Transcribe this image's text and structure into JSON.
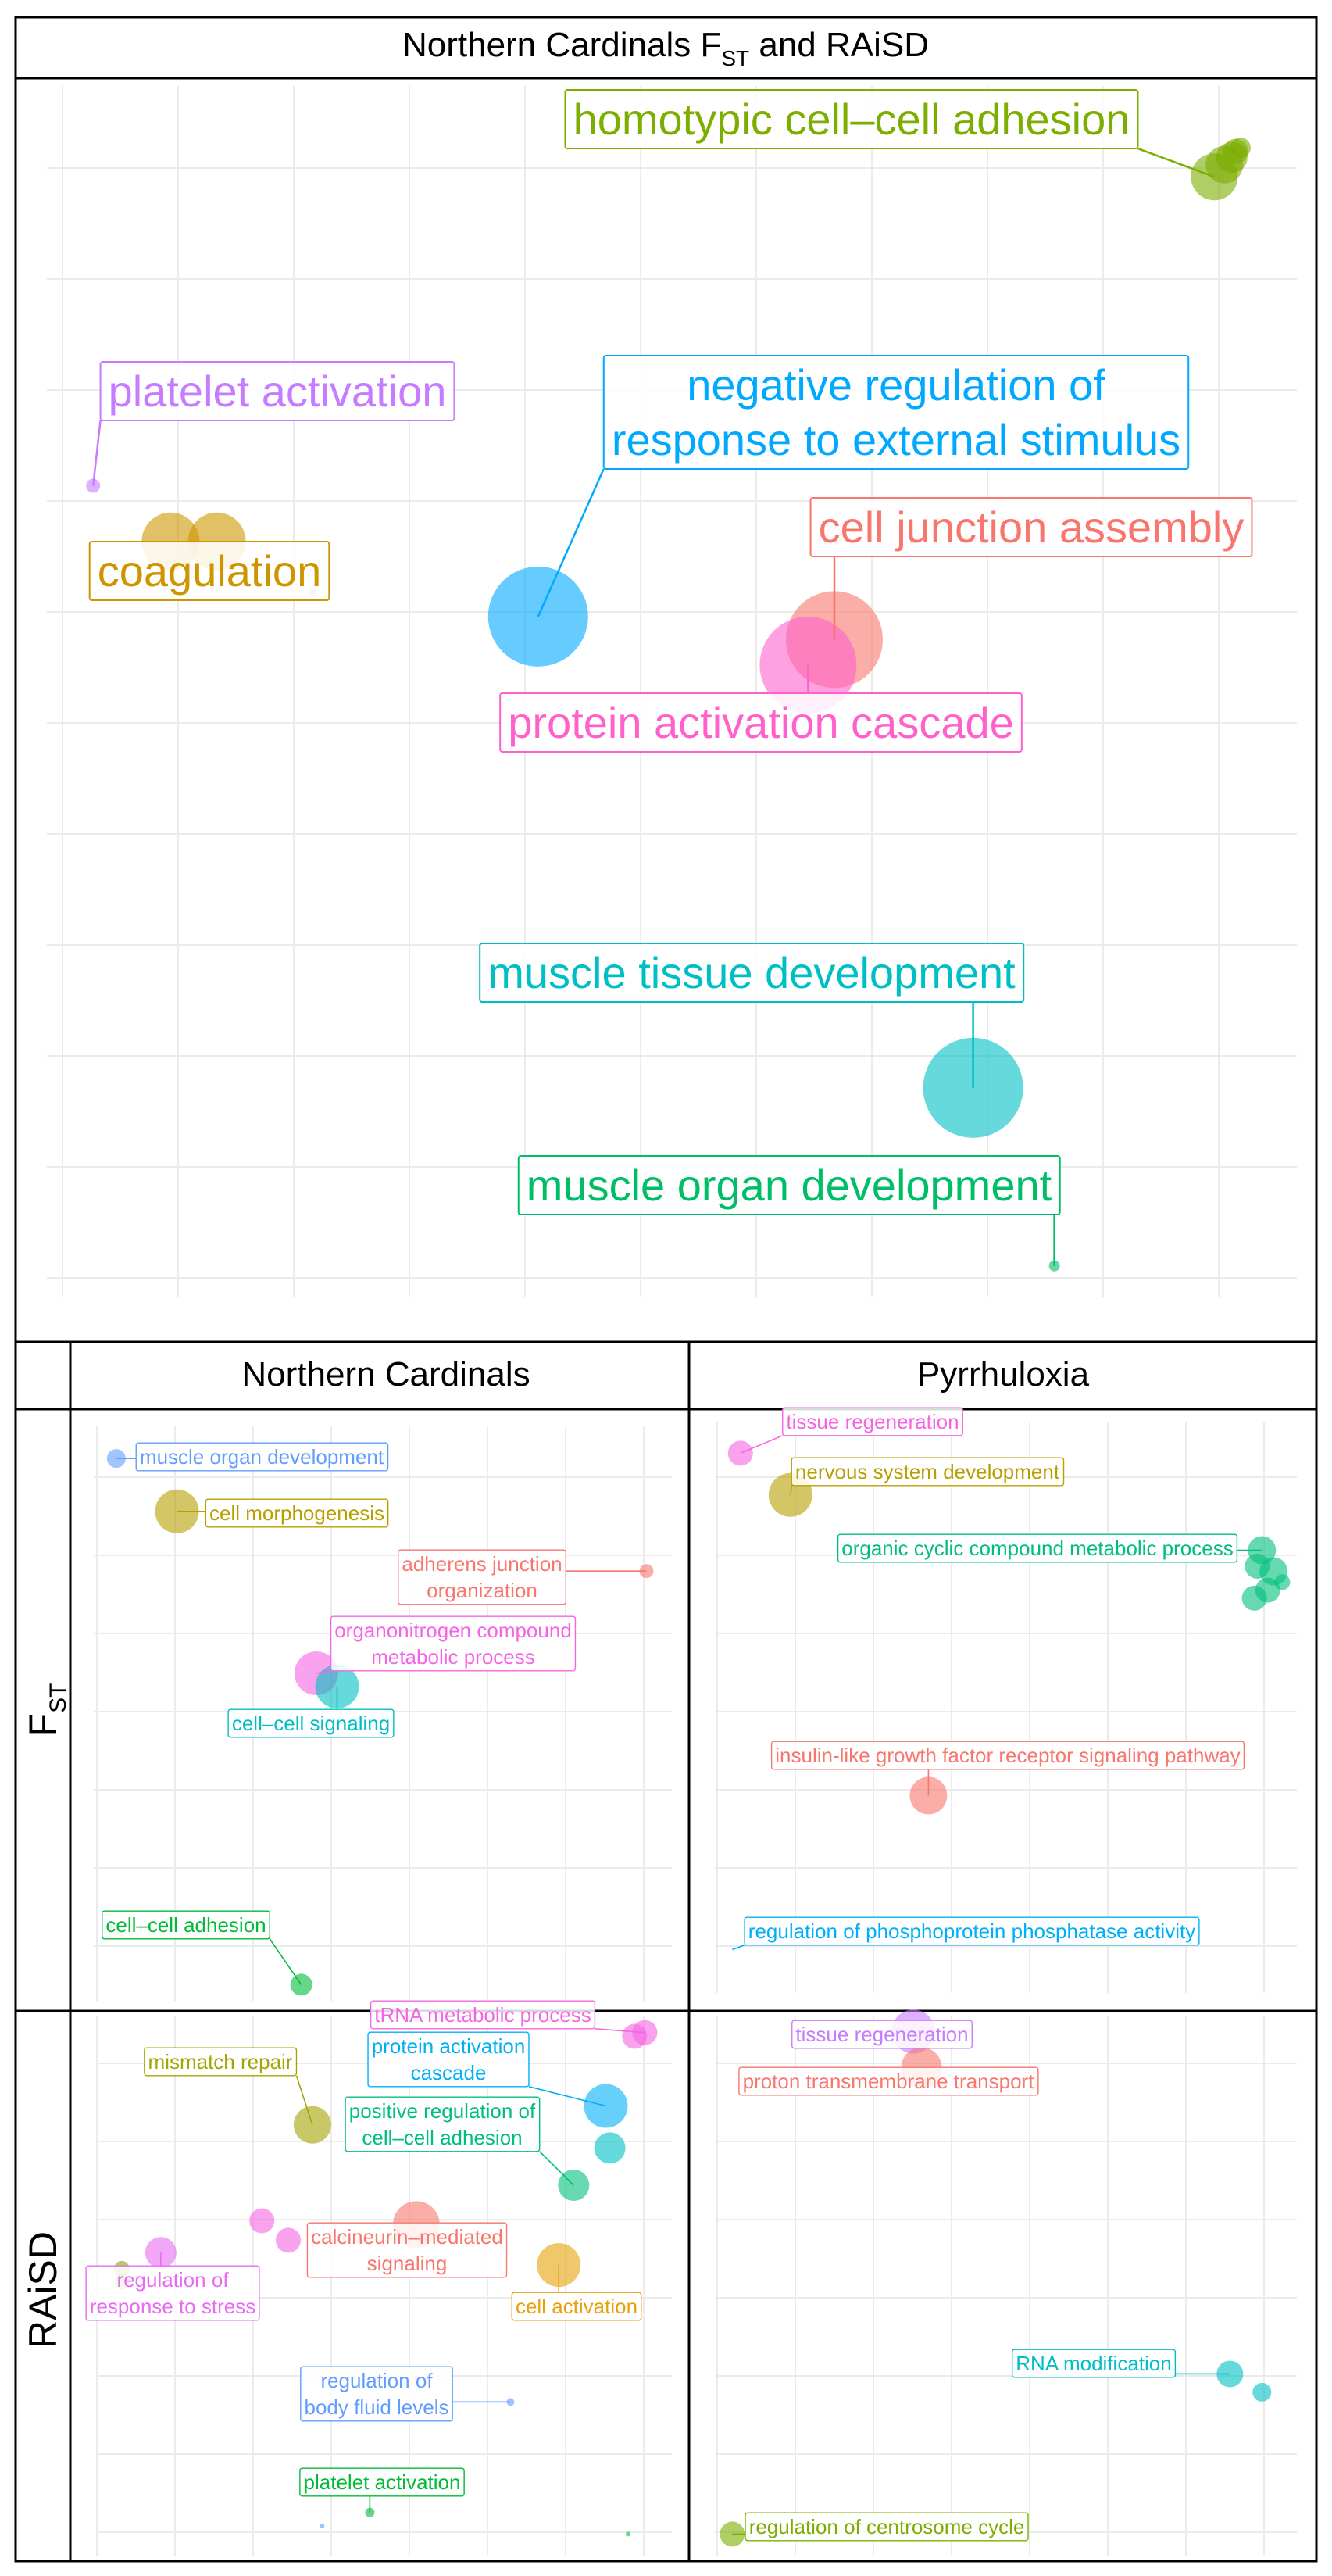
{
  "figure": {
    "top_title": "Northern Cardinals F",
    "top_title_sub": "ST",
    "top_title_suffix": " and RAiSD",
    "col_headers": [
      "Northern Cardinals",
      "Pyrrhuloxia"
    ],
    "row_headers": [
      {
        "main": "F",
        "sub": "ST"
      },
      {
        "main": "RAiSD",
        "sub": ""
      }
    ]
  },
  "colors": {
    "frame": "#000000",
    "grid": "#ebebeb",
    "background": "#ffffff"
  },
  "chart_data": [
    {
      "panel": "top",
      "type": "scatter",
      "points": [
        {
          "label": "homotypic cell–cell adhesion",
          "x": 0.934,
          "y": 0.925,
          "r": 30,
          "color": "#7cae00",
          "show": true
        },
        {
          "label": "",
          "x": 0.942,
          "y": 0.935,
          "r": 24,
          "color": "#7cae00",
          "show": false
        },
        {
          "label": "",
          "x": 0.948,
          "y": 0.941,
          "r": 20,
          "color": "#7cae00",
          "show": false
        },
        {
          "label": "",
          "x": 0.951,
          "y": 0.946,
          "r": 16,
          "color": "#7cae00",
          "show": false
        },
        {
          "label": "",
          "x": 0.955,
          "y": 0.949,
          "r": 13,
          "color": "#7cae00",
          "show": false
        },
        {
          "label": "platelet activation",
          "x": 0.037,
          "y": 0.67,
          "r": 9,
          "color": "#c77cff",
          "show": true
        },
        {
          "label": "coagulation",
          "x": 0.099,
          "y": 0.624,
          "r": 37,
          "color": "#cd9600",
          "show": true
        },
        {
          "label": "",
          "x": 0.136,
          "y": 0.624,
          "r": 37,
          "color": "#cd9600",
          "show": false
        },
        {
          "label": "",
          "x": 0.213,
          "y": 0.582,
          "r": 5,
          "color": "#c77cff",
          "show": false
        },
        {
          "label": "negative regulation of\nresponse to external stimulus",
          "x": 0.393,
          "y": 0.562,
          "r": 64,
          "color": "#00a9ff",
          "show": true
        },
        {
          "label": "cell junction assembly",
          "x": 0.63,
          "y": 0.543,
          "r": 62,
          "color": "#f8766d",
          "show": true
        },
        {
          "label": "protein activation cascade",
          "x": 0.609,
          "y": 0.522,
          "r": 62,
          "color": "#ff61cc",
          "show": true
        },
        {
          "label": "muscle tissue development",
          "x": 0.741,
          "y": 0.173,
          "r": 64,
          "color": "#00bfc4",
          "show": true
        },
        {
          "label": "muscle organ development",
          "x": 0.806,
          "y": 0.026,
          "r": 7,
          "color": "#00be67",
          "show": true
        }
      ]
    },
    {
      "panel": "Northern Cardinals F_ST",
      "type": "scatter",
      "points": [
        {
          "label": "muscle organ development",
          "x": 0.039,
          "y": 0.944,
          "r": 12,
          "color": "#619cff",
          "show": true
        },
        {
          "label": "cell morphogenesis",
          "x": 0.144,
          "y": 0.852,
          "r": 28,
          "color": "#b79f00",
          "show": true
        },
        {
          "label": "adherens junction\norganization",
          "x": 0.956,
          "y": 0.748,
          "r": 9,
          "color": "#f8766d",
          "show": true
        },
        {
          "label": "organonitrogen compound\nmetabolic process",
          "x": 0.385,
          "y": 0.57,
          "r": 28,
          "color": "#f564e3",
          "show": true
        },
        {
          "label": "cell–cell signaling",
          "x": 0.421,
          "y": 0.547,
          "r": 28,
          "color": "#00bfc4",
          "show": true
        },
        {
          "label": "cell–cell adhesion",
          "x": 0.359,
          "y": 0.028,
          "r": 14,
          "color": "#00ba38",
          "show": true
        }
      ]
    },
    {
      "panel": "Pyrrhuloxia F_ST",
      "type": "scatter",
      "points": [
        {
          "label": "tissue regeneration",
          "x": 0.044,
          "y": 0.946,
          "r": 16,
          "color": "#f564e3",
          "show": true
        },
        {
          "label": "nervous system development",
          "x": 0.13,
          "y": 0.873,
          "r": 28,
          "color": "#b79f00",
          "show": true
        },
        {
          "label": "organic cyclic compound metabolic process",
          "x": 0.94,
          "y": 0.776,
          "r": 18,
          "color": "#00bf7d",
          "show": true
        },
        {
          "label": "",
          "x": 0.96,
          "y": 0.739,
          "r": 18,
          "color": "#00bf7d",
          "show": false
        },
        {
          "label": "",
          "x": 0.932,
          "y": 0.748,
          "r": 16,
          "color": "#00bf7d",
          "show": false
        },
        {
          "label": "",
          "x": 0.95,
          "y": 0.706,
          "r": 16,
          "color": "#00bf7d",
          "show": false
        },
        {
          "label": "",
          "x": 0.975,
          "y": 0.72,
          "r": 10,
          "color": "#00bf7d",
          "show": false
        },
        {
          "label": "",
          "x": 0.927,
          "y": 0.692,
          "r": 16,
          "color": "#00bf7d",
          "show": false
        },
        {
          "label": "insulin-like growth factor receptor signaling pathway",
          "x": 0.367,
          "y": 0.346,
          "r": 24,
          "color": "#f8766d",
          "show": true
        },
        {
          "label": "regulation of phosphoprotein phosphatase activity",
          "x": 0.03,
          "y": 0.076,
          "r": 0,
          "color": "#00b0f6",
          "show": true
        }
      ]
    },
    {
      "panel": "Northern Cardinals RAiSD",
      "type": "scatter",
      "points": [
        {
          "label": "tRNA metabolic process",
          "x": 0.953,
          "y": 0.97,
          "r": 16,
          "color": "#f564e3",
          "show": true
        },
        {
          "label": "",
          "x": 0.935,
          "y": 0.963,
          "r": 16,
          "color": "#f564e3",
          "show": false
        },
        {
          "label": "mismatch repair",
          "x": 0.374,
          "y": 0.799,
          "r": 24,
          "color": "#a3a500",
          "show": true
        },
        {
          "label": "protein activation\ncascade",
          "x": 0.885,
          "y": 0.834,
          "r": 28,
          "color": "#00b0f6",
          "show": true
        },
        {
          "label": "",
          "x": 0.892,
          "y": 0.756,
          "r": 20,
          "color": "#00bfc4",
          "show": false
        },
        {
          "label": "positive regulation of\ncell–cell adhesion",
          "x": 0.829,
          "y": 0.687,
          "r": 20,
          "color": "#00bf7d",
          "show": true
        },
        {
          "label": "calcineurin–mediated\nsignaling",
          "x": 0.555,
          "y": 0.614,
          "r": 30,
          "color": "#f8766d",
          "show": true
        },
        {
          "label": "",
          "x": 0.286,
          "y": 0.621,
          "r": 16,
          "color": "#f564e3",
          "show": false
        },
        {
          "label": "",
          "x": 0.332,
          "y": 0.585,
          "r": 16,
          "color": "#f564e3",
          "show": false
        },
        {
          "label": "regulation of\nresponse to stress",
          "x": 0.11,
          "y": 0.562,
          "r": 20,
          "color": "#e76bf3",
          "show": true
        },
        {
          "label": "",
          "x": 0.042,
          "y": 0.532,
          "r": 10,
          "color": "#7cae00",
          "show": false
        },
        {
          "label": "",
          "x": 0.042,
          "y": 0.508,
          "r": 10,
          "color": "#7cae00",
          "show": false
        },
        {
          "label": "cell activation",
          "x": 0.803,
          "y": 0.539,
          "r": 28,
          "color": "#e7a10a",
          "show": true
        },
        {
          "label": "regulation of\nbody fluid levels",
          "x": 0.719,
          "y": 0.285,
          "r": 5,
          "color": "#619cff",
          "show": true
        },
        {
          "label": "platelet activation",
          "x": 0.474,
          "y": 0.08,
          "r": 6,
          "color": "#00ba38",
          "show": true
        },
        {
          "label": "",
          "x": 0.391,
          "y": 0.055,
          "r": 3,
          "color": "#619cff",
          "show": false
        },
        {
          "label": "",
          "x": 0.924,
          "y": 0.04,
          "r": 3,
          "color": "#00ba38",
          "show": false
        }
      ]
    },
    {
      "panel": "Pyrrhuloxia RAiSD",
      "type": "scatter",
      "points": [
        {
          "label": "tissue regeneration",
          "x": 0.341,
          "y": 0.972,
          "r": 28,
          "color": "#c77cff",
          "show": true
        },
        {
          "label": "proton transmembrane transport",
          "x": 0.355,
          "y": 0.905,
          "r": 26,
          "color": "#f8766d",
          "show": true
        },
        {
          "label": "RNA modification",
          "x": 0.885,
          "y": 0.337,
          "r": 17,
          "color": "#00bfc4",
          "show": true
        },
        {
          "label": "",
          "x": 0.94,
          "y": 0.303,
          "r": 12,
          "color": "#00bfc4",
          "show": false
        },
        {
          "label": "regulation of centrosome cycle",
          "x": 0.03,
          "y": 0.04,
          "r": 16,
          "color": "#7cae00",
          "show": true
        }
      ]
    }
  ]
}
